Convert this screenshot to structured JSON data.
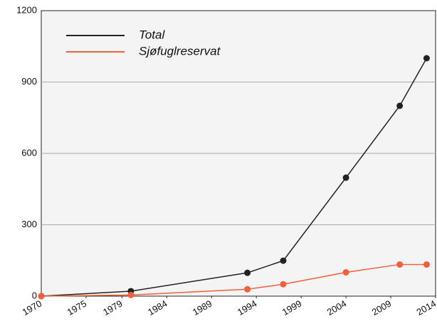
{
  "chart_data": {
    "type": "line",
    "x": [
      1970,
      1980,
      1993,
      1997,
      2004,
      2010,
      2013
    ],
    "series": [
      {
        "name": "Total",
        "color": "#222222",
        "values": [
          0,
          21,
          98,
          149,
          498,
          800,
          1000
        ]
      },
      {
        "name": "Sjøfuglreservat",
        "color": "#f0603a",
        "values": [
          0,
          5,
          29,
          50,
          100,
          133,
          133
        ]
      }
    ],
    "xlim": [
      1970,
      2014
    ],
    "xticks": [
      1970,
      1975,
      1979,
      1984,
      1989,
      1994,
      1999,
      2004,
      2009,
      2014
    ],
    "ylim": [
      0,
      1200
    ],
    "yticks": [
      0,
      300,
      600,
      900,
      1200
    ],
    "grid": true,
    "legend": "top-left"
  }
}
